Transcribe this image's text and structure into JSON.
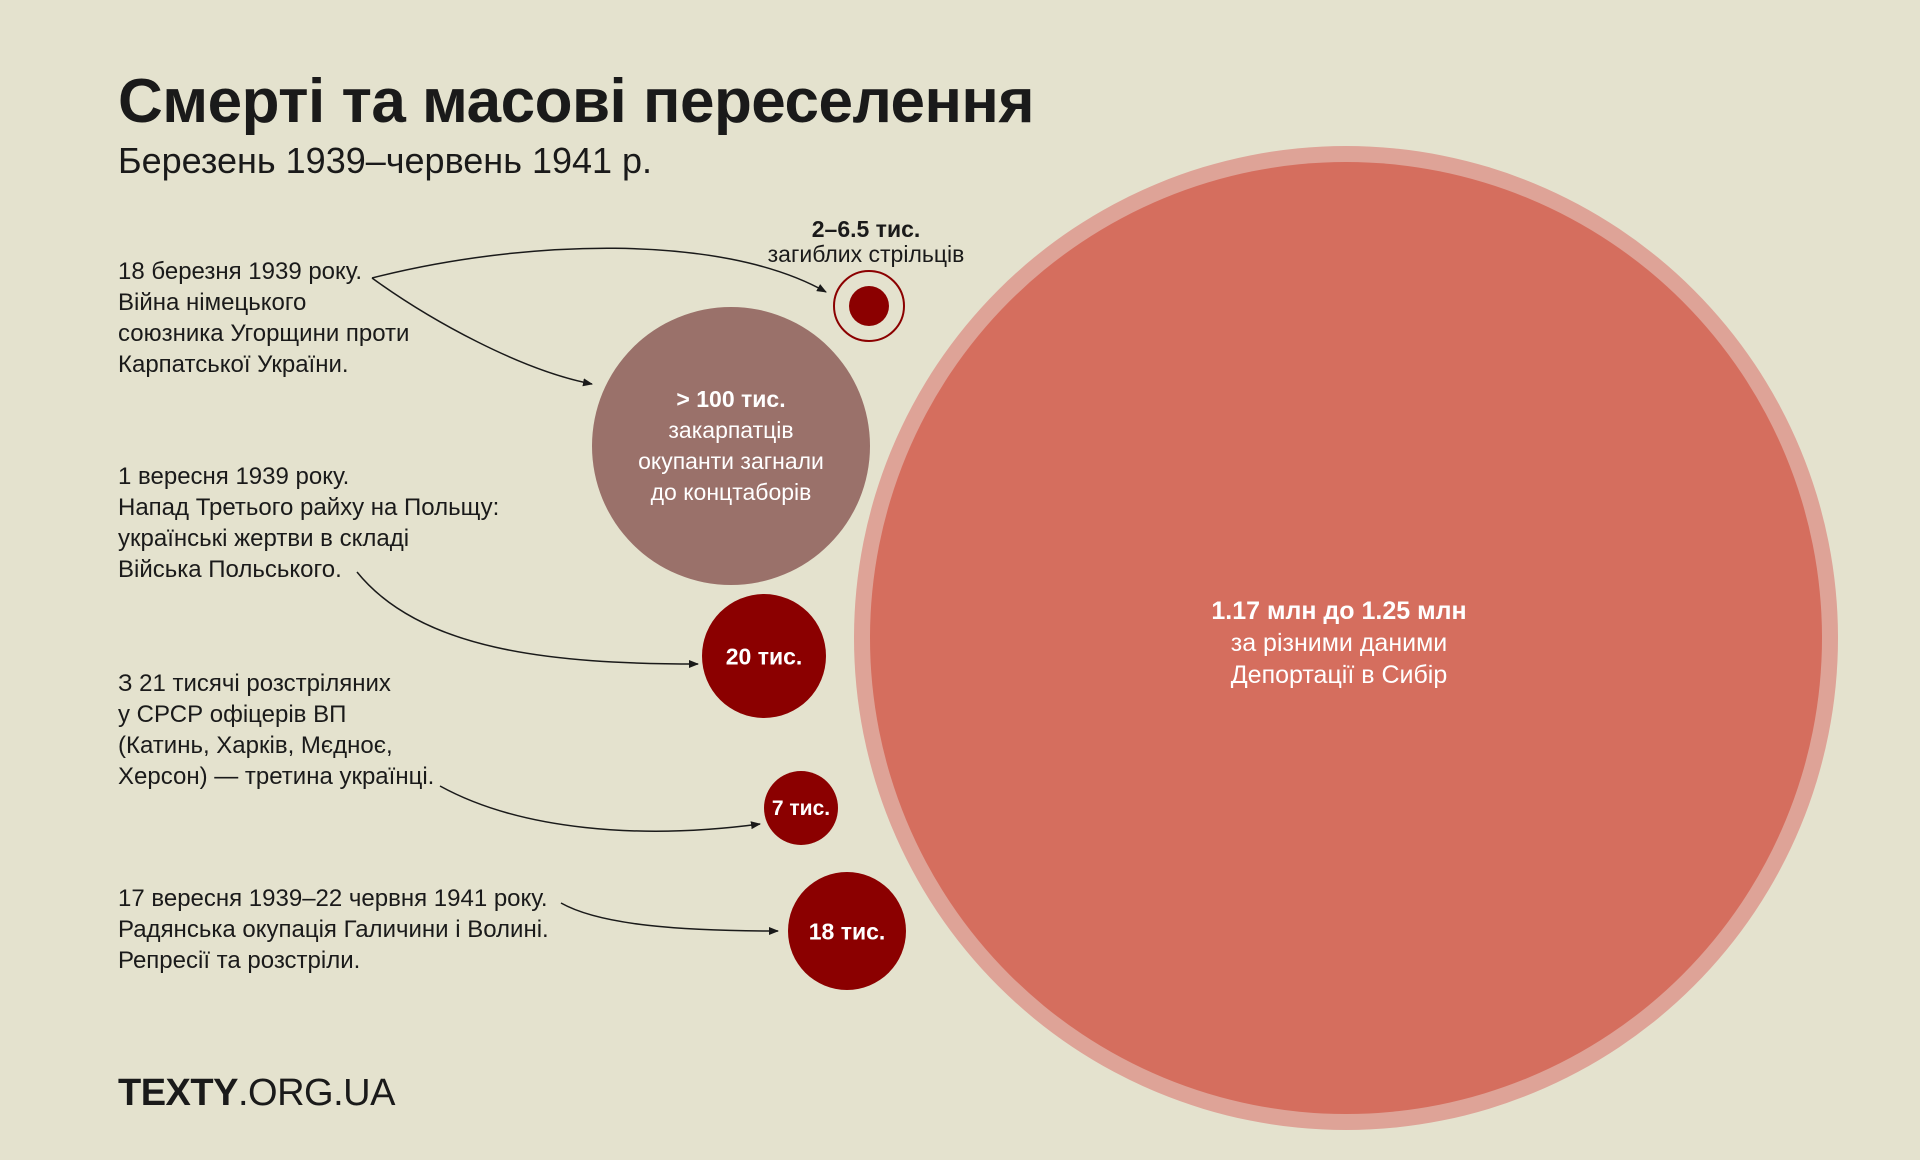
{
  "header": {
    "title": "Смерті та масові переселення",
    "subtitle": "Березень 1939–червень 1941 р."
  },
  "events": [
    {
      "lines": [
        "18 березня 1939 року.",
        "Війна німецького",
        "союзника Угорщини проти",
        "Карпатської України."
      ]
    },
    {
      "lines": [
        "1 вересня 1939 року.",
        "Напад Третього райху на Польщу:",
        "українські жертви в складі",
        "Війська Польського."
      ]
    },
    {
      "lines": [
        "З 21 тисячі розстріляних",
        "у СРСР офіцерів ВП",
        "(Катинь, Харків, Мєдноє,",
        "Херсон) — третина українці."
      ]
    },
    {
      "lines": [
        "17 вересня 1939–22 червня 1941 року.",
        "Радянська окупація Галичини і Волині.",
        "Репресії та розстріли."
      ]
    }
  ],
  "circles": {
    "riflemen": {
      "value": "2–6.5 тис.",
      "desc": "загиблих стрільців",
      "color": "#8b0000"
    },
    "camps": {
      "value": "> 100 тис.",
      "desc_lines": [
        "закарпатців",
        "окупанти загнали",
        "до концтаборів"
      ],
      "color": "#9a716a"
    },
    "polish_army": {
      "value": "20 тис.",
      "color": "#8b0000"
    },
    "officers": {
      "value": "7 тис.",
      "color": "#8b0000"
    },
    "occupation": {
      "value": "18 тис.",
      "color": "#8b0000"
    },
    "deportation": {
      "value": "1.17 млн до 1.25 млн",
      "desc_lines": [
        "за різними даними",
        "Депортації в Сибір"
      ],
      "color": "#d56e5e",
      "ring_color": "#dea397"
    }
  },
  "footer": {
    "logo_bold": "TEXTY",
    "logo_light": ".ORG.UA"
  }
}
